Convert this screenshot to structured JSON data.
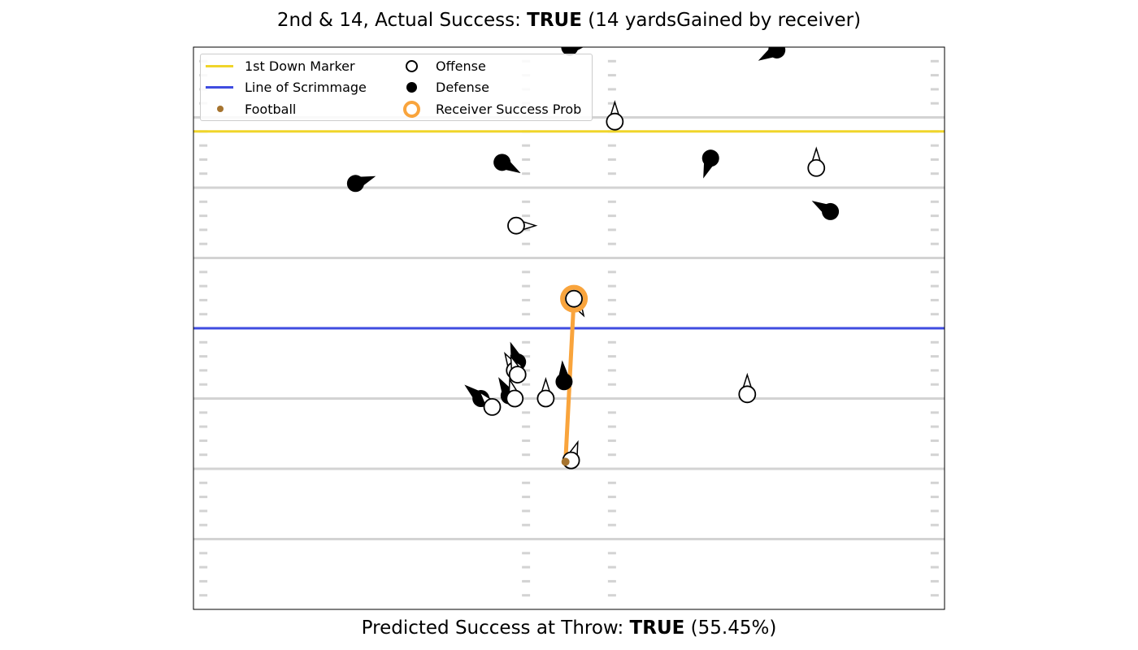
{
  "header": {
    "title_prefix": "2nd & 14, Actual Success: ",
    "title_bold": "TRUE",
    "title_suffix": " (14 yardsGained by receiver)"
  },
  "footer": {
    "prefix": "Predicted Success at Throw: ",
    "bold": "TRUE",
    "suffix": " (55.45%)"
  },
  "legend": {
    "first_down": "1st Down Marker",
    "line_of_scrimmage": "Line of Scrimmage",
    "football": "Football",
    "offense": "Offense",
    "defense": "Defense",
    "receiver_prob": "Receiver Success Prob"
  },
  "colors": {
    "first_down": "#f0d52a",
    "line_of_scrimmage": "#3f4ce0",
    "football": "#a6742f",
    "receiver_ring": "#f9a43c",
    "field_line": "#d3d3d3"
  },
  "chart_data": {
    "type": "scatter",
    "title": "2nd & 14, Actual Success: TRUE (14 yardsGained by receiver)",
    "xlim": [
      0,
      53.3
    ],
    "ylim": [
      0,
      40
    ],
    "yard_lines": [
      5,
      10,
      15,
      20,
      25,
      30,
      35
    ],
    "hash_marks_x": [
      0.7,
      23.6,
      29.7,
      52.6
    ],
    "first_down_y": 34,
    "line_of_scrimmage_y": 20,
    "offense": [
      {
        "x": 29.9,
        "y": 34.7,
        "dir": 0
      },
      {
        "x": 44.2,
        "y": 31.4,
        "dir": 0
      },
      {
        "x": 22.9,
        "y": 27.3,
        "dir": 90
      },
      {
        "x": 27.0,
        "y": 22.1,
        "dir": 150,
        "receiver": true
      },
      {
        "x": 22.8,
        "y": 17.0,
        "dir": 330
      },
      {
        "x": 23.0,
        "y": 16.7,
        "dir": 340
      },
      {
        "x": 22.8,
        "y": 15.0,
        "dir": 345
      },
      {
        "x": 21.2,
        "y": 14.4,
        "dir": 320
      },
      {
        "x": 25.0,
        "y": 15.0,
        "dir": 0
      },
      {
        "x": 39.3,
        "y": 15.3,
        "dir": 0
      },
      {
        "x": 26.8,
        "y": 10.6,
        "dir": 20
      }
    ],
    "defense": [
      {
        "x": 26.7,
        "y": 40.0,
        "dir": 80
      },
      {
        "x": 41.4,
        "y": 39.8,
        "dir": 240
      },
      {
        "x": 21.9,
        "y": 31.8,
        "dir": 120
      },
      {
        "x": 36.7,
        "y": 32.1,
        "dir": 200
      },
      {
        "x": 11.5,
        "y": 30.3,
        "dir": 70
      },
      {
        "x": 45.2,
        "y": 28.3,
        "dir": 300
      },
      {
        "x": 23.0,
        "y": 17.6,
        "dir": 340
      },
      {
        "x": 26.3,
        "y": 16.2,
        "dir": 355
      },
      {
        "x": 22.4,
        "y": 15.2,
        "dir": 330
      },
      {
        "x": 20.4,
        "y": 15.0,
        "dir": 310
      }
    ],
    "football": {
      "x": 26.4,
      "y": 10.5
    },
    "receiver_success_prob": 0.5545,
    "throw_path": [
      {
        "x": 26.4,
        "y": 10.5
      },
      {
        "x": 27.0,
        "y": 22.1
      }
    ],
    "legend_position": "upper-left"
  }
}
